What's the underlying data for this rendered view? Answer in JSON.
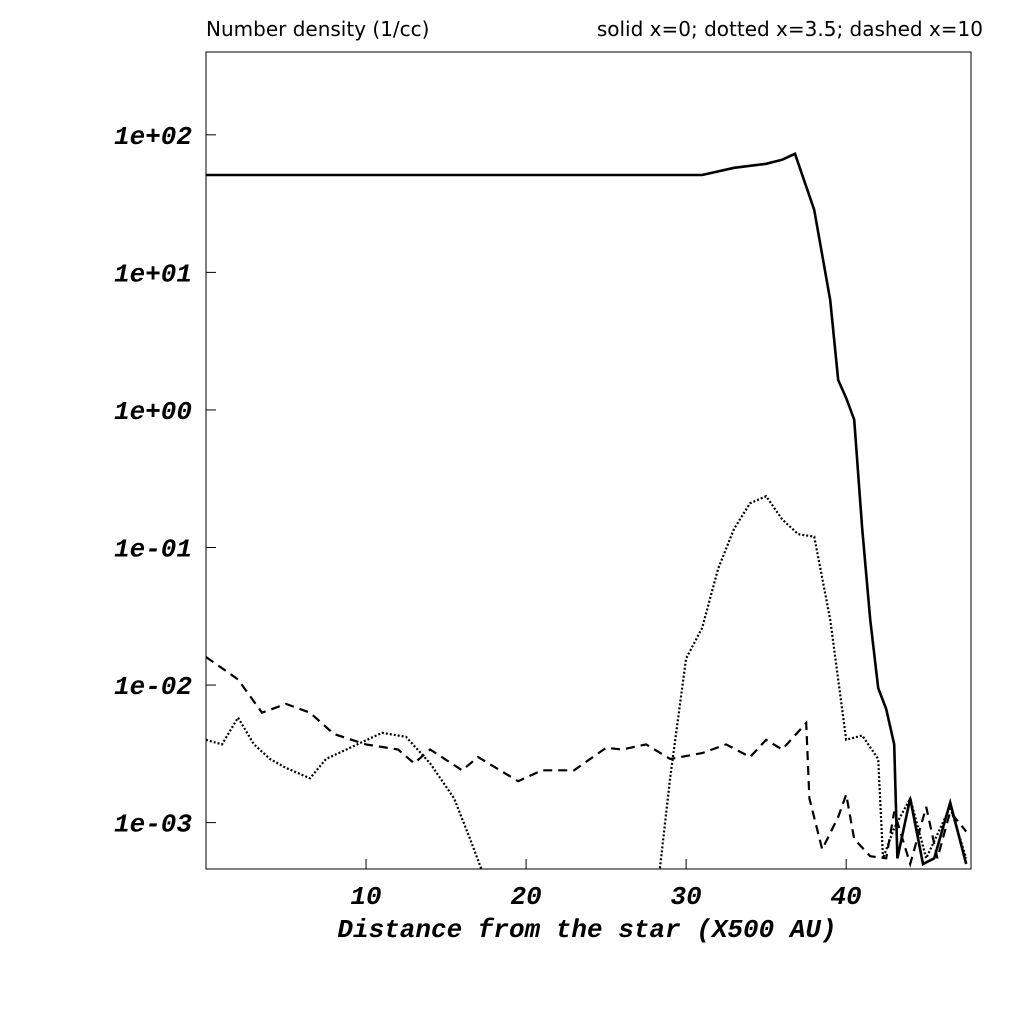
{
  "chart_data": {
    "type": "line",
    "title": "Number density (1/cc)",
    "legend_text": "solid x=0; dotted x=3.5; dashed x=10",
    "x_label": "Distance from the star (X500 AU)",
    "log_y": true,
    "xlim": [
      0,
      47.8
    ],
    "ylim": [
      0.00046,
      400
    ],
    "xticks": [
      10,
      20,
      30,
      40
    ],
    "yticks": [
      {
        "value": 100,
        "label": "1e+02"
      },
      {
        "value": 10,
        "label": "1e+01"
      },
      {
        "value": 1,
        "label": "1e+00"
      },
      {
        "value": 0.1,
        "label": "1e-01"
      },
      {
        "value": 0.01,
        "label": "1e-02"
      },
      {
        "value": 0.001,
        "label": "1e-03"
      }
    ],
    "series": [
      {
        "style": "solid",
        "color": "#000000",
        "x": [
          0,
          31,
          33,
          35,
          36,
          36.8,
          38,
          39,
          39.5,
          40,
          40.5,
          41,
          41.5,
          42,
          42.5,
          43,
          43.2,
          44,
          44.8,
          45.5,
          46.5,
          47.5
        ],
        "values": [
          51,
          51,
          57.6,
          61.6,
          65.9,
          72.8,
          28.5,
          6.3,
          1.65,
          1.22,
          0.85,
          0.137,
          0.03,
          0.0095,
          0.0067,
          0.0037,
          0.00055,
          0.0015,
          0.0005,
          0.00055,
          0.0014,
          0.0005
        ]
      },
      {
        "style": "dotted",
        "color": "#000000",
        "x": [
          0,
          1,
          2,
          3,
          4,
          5,
          6.5,
          7.5,
          9,
          11,
          12.5,
          14,
          15.5,
          16.5,
          17.2,
          17.3,
          28.3,
          29,
          30,
          31,
          32,
          33,
          34,
          35,
          36,
          37,
          38,
          39,
          40,
          41,
          42,
          42.3,
          43,
          44,
          45,
          46.5,
          47.5
        ],
        "values": [
          0.004,
          0.0037,
          0.0058,
          0.0037,
          0.0029,
          0.0025,
          0.0021,
          0.0029,
          0.0035,
          0.0045,
          0.0042,
          0.0027,
          0.0015,
          0.00076,
          0.00046,
          0.0004,
          0.0004,
          0.0021,
          0.0156,
          0.026,
          0.07,
          0.137,
          0.21,
          0.236,
          0.16,
          0.125,
          0.12,
          0.03,
          0.004,
          0.0043,
          0.0029,
          0.00055,
          0.00091,
          0.0015,
          0.00055,
          0.0013,
          0.00055
        ]
      },
      {
        "style": "dashed",
        "color": "#000000",
        "x": [
          0,
          2,
          3.5,
          5,
          6.5,
          8,
          10,
          12,
          13,
          14,
          16,
          17,
          19.5,
          21,
          23,
          25,
          26,
          27.5,
          29,
          31,
          32.5,
          34,
          35,
          36,
          37.5,
          37.7,
          38.5,
          39.5,
          40,
          40.5,
          41.5,
          42.5,
          43,
          44,
          45,
          45.7,
          46.5,
          47.5
        ],
        "values": [
          0.016,
          0.011,
          0.0063,
          0.0073,
          0.0063,
          0.0044,
          0.0037,
          0.0034,
          0.0027,
          0.0034,
          0.0024,
          0.003,
          0.002,
          0.0024,
          0.0024,
          0.0035,
          0.0034,
          0.0037,
          0.0029,
          0.0032,
          0.0037,
          0.003,
          0.004,
          0.0034,
          0.0053,
          0.0015,
          0.00064,
          0.0011,
          0.0016,
          0.00076,
          0.00057,
          0.00055,
          0.0012,
          0.0005,
          0.0013,
          0.00055,
          0.0012,
          0.00086
        ]
      }
    ]
  }
}
